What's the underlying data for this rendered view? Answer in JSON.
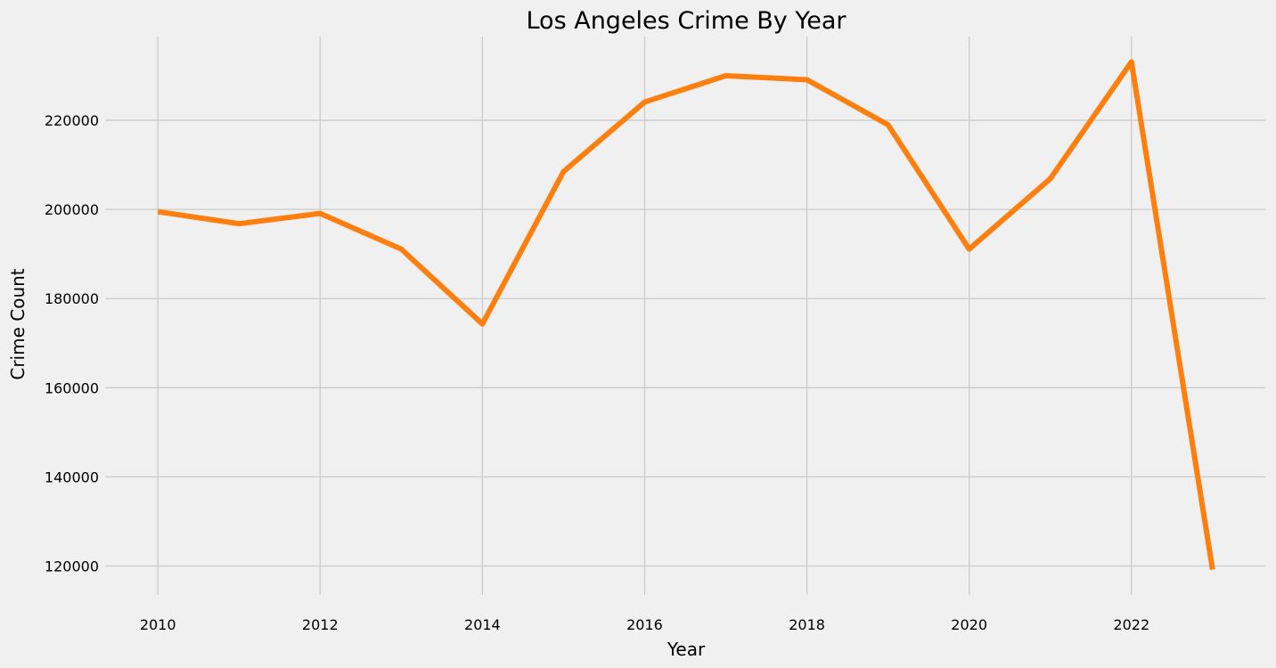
{
  "chart_data": {
    "type": "line",
    "title": "Los Angeles Crime By Year",
    "xlabel": "Year",
    "ylabel": "Crime Count",
    "x": [
      2010,
      2011,
      2012,
      2013,
      2014,
      2015,
      2016,
      2017,
      2018,
      2019,
      2020,
      2021,
      2022,
      2023
    ],
    "series": [
      {
        "values": [
          199500,
          196800,
          199100,
          191100,
          174300,
          208500,
          224100,
          230000,
          229100,
          219000,
          191100,
          206900,
          233100,
          119200
        ]
      }
    ],
    "xticks": [
      2010,
      2012,
      2014,
      2016,
      2018,
      2020,
      2022
    ],
    "yticks": [
      120000,
      140000,
      160000,
      180000,
      200000,
      220000
    ],
    "xlim": [
      2009.35,
      2023.65
    ],
    "ylim": [
      113500,
      238800
    ],
    "grid": true,
    "line_color": "#fc7f10",
    "background_color": "#f0f0f0",
    "grid_color": "#cbcbcb"
  }
}
